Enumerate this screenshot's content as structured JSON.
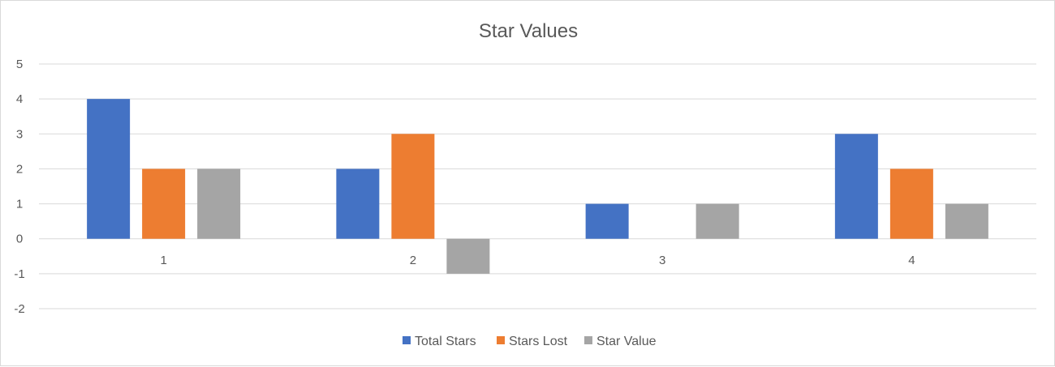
{
  "chart_data": {
    "type": "bar",
    "title": "Star Values",
    "xlabel": "",
    "ylabel": "",
    "categories": [
      "1",
      "2",
      "3",
      "4"
    ],
    "series": [
      {
        "name": "Total Stars",
        "values": [
          4,
          2,
          1,
          3
        ],
        "color": "#4472c4"
      },
      {
        "name": "Stars Lost",
        "values": [
          2,
          3,
          0,
          2
        ],
        "color": "#ed7d31"
      },
      {
        "name": "Star Value",
        "values": [
          2,
          -1,
          1,
          1
        ],
        "color": "#a5a5a5"
      }
    ],
    "ylim": [
      -2,
      5
    ],
    "yticks": [
      "5",
      "4",
      "3",
      "2",
      "1",
      "0",
      "-1",
      "-2"
    ],
    "grid": true,
    "legend_position": "bottom",
    "gridline_color": "#d9d9d9",
    "text_color": "#595959"
  }
}
